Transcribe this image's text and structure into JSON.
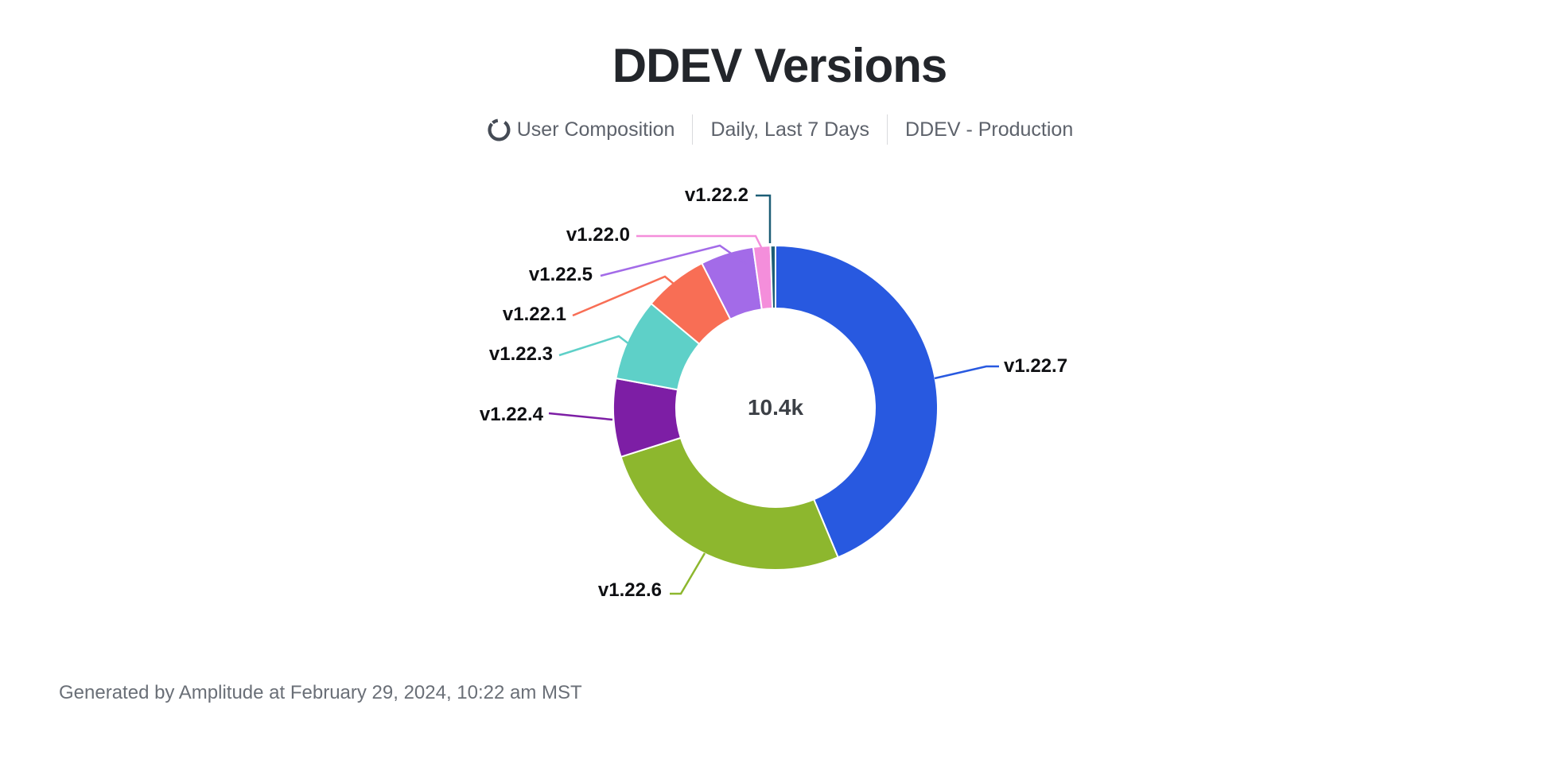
{
  "title": "DDEV Versions",
  "subtitle": {
    "icon": "donut-chart-icon",
    "chart_type": "User Composition",
    "date_range": "Daily, Last 7 Days",
    "project": "DDEV - Production"
  },
  "chart_data": {
    "type": "pie",
    "variant": "donut",
    "title": "DDEV Versions",
    "center_label": "10.4k",
    "total_users": "10.4k",
    "legend_position": "outside-labels-with-leader-lines",
    "slices": [
      {
        "label": "v1.22.7",
        "percent": 43.7,
        "color": "#2859e0"
      },
      {
        "label": "v1.22.6",
        "percent": 26.4,
        "color": "#8db72e"
      },
      {
        "label": "v1.22.4",
        "percent": 7.8,
        "color": "#7d1ea5"
      },
      {
        "label": "v1.22.3",
        "percent": 8.2,
        "color": "#5ed0c8"
      },
      {
        "label": "v1.22.1",
        "percent": 6.4,
        "color": "#f86e55"
      },
      {
        "label": "v1.22.5",
        "percent": 5.3,
        "color": "#a36be8"
      },
      {
        "label": "v1.22.0",
        "percent": 1.7,
        "color": "#f48edb"
      },
      {
        "label": "v1.22.2",
        "percent": 0.5,
        "color": "#1d5e76"
      }
    ]
  },
  "footer": {
    "text": "Generated by Amplitude at February 29, 2024, 10:22 am MST"
  },
  "colors": {
    "background": "#ffffff",
    "title_text": "#23262b",
    "subtitle_text": "#5d626b",
    "center_text": "#3c4046",
    "label_text": "#0f1013",
    "footer_text": "#6a6f77"
  }
}
